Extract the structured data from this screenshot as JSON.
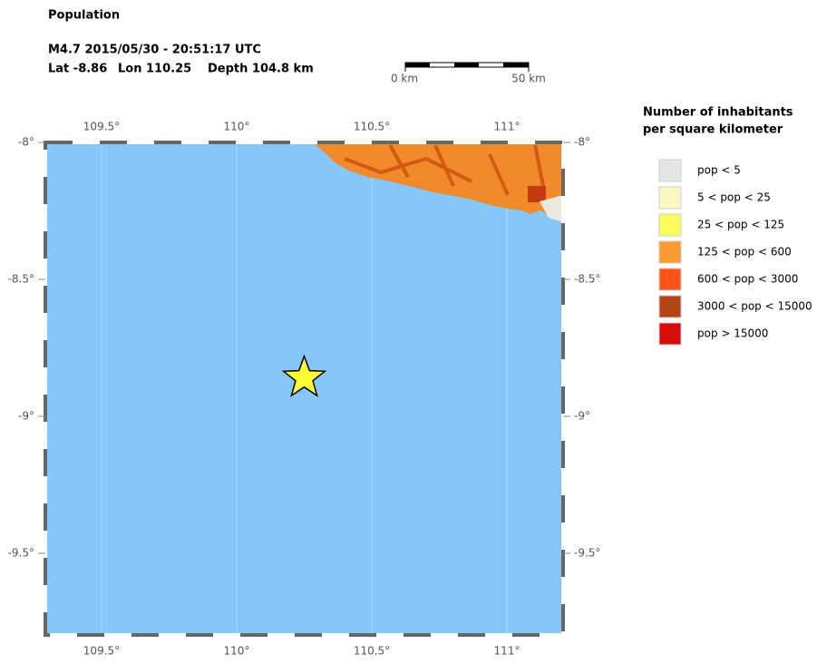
{
  "header": {
    "title": "Population",
    "event": "M4.7  2015/05/30 - 20:51:17 UTC",
    "lat": "Lat -8.86",
    "lon": "Lon 110.25",
    "depth": "Depth 104.8 km"
  },
  "scale_bar": {
    "start": "0 km",
    "end": "50 km"
  },
  "map": {
    "lonlim": [
      109.292,
      111.208
    ],
    "latlim": [
      -8,
      -9.798
    ],
    "lon_ticks": [
      {
        "value": 109.5,
        "label": "109.5°"
      },
      {
        "value": 110,
        "label": "110°"
      },
      {
        "value": 110.5,
        "label": "110.5°"
      },
      {
        "value": 111,
        "label": "111°"
      }
    ],
    "lat_ticks": [
      {
        "value": -8,
        "label": "-8°"
      },
      {
        "value": -8.5,
        "label": "-8.5°"
      },
      {
        "value": -9,
        "label": "-9°"
      },
      {
        "value": -9.5,
        "label": "-9.5°"
      }
    ],
    "epicenter": {
      "lat": -8.86,
      "lon": 110.25,
      "color": "#ffff33"
    }
  },
  "legend": {
    "title": [
      "Number of inhabitants",
      "per square kilometer"
    ],
    "items": [
      {
        "label": "pop < 5",
        "color": "#e6e6e6"
      },
      {
        "label": "5 < pop < 25",
        "color": "#fcf8c4"
      },
      {
        "label": "25 < pop < 125",
        "color": "#fcfc5c"
      },
      {
        "label": "125 < pop < 600",
        "color": "#fc9a30"
      },
      {
        "label": "600 < pop < 3000",
        "color": "#fc5416"
      },
      {
        "label": "3000 < pop < 15000",
        "color": "#b44416"
      },
      {
        "label": "pop > 15000",
        "color": "#d40c0c"
      }
    ]
  }
}
